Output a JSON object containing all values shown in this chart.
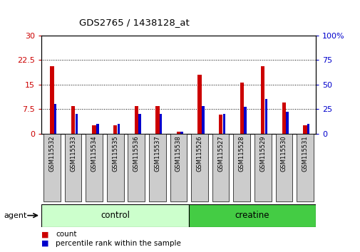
{
  "title": "GDS2765 / 1438128_at",
  "samples": [
    "GSM115532",
    "GSM115533",
    "GSM115534",
    "GSM115535",
    "GSM115536",
    "GSM115537",
    "GSM115538",
    "GSM115526",
    "GSM115527",
    "GSM115528",
    "GSM115529",
    "GSM115530",
    "GSM115531"
  ],
  "count_values": [
    20.5,
    8.5,
    2.5,
    2.5,
    8.5,
    8.5,
    0.5,
    18.0,
    5.8,
    15.5,
    20.5,
    9.5,
    2.5
  ],
  "percentile_values": [
    30,
    20,
    10,
    10,
    20,
    20,
    2,
    28,
    20,
    27,
    35,
    22,
    10
  ],
  "count_color": "#cc0000",
  "percentile_color": "#0000cc",
  "plot_bg": "#ffffff",
  "label_box_color": "#cccccc",
  "control_color": "#ccffcc",
  "creatine_color": "#44cc44",
  "y_left_ticks": [
    0,
    7.5,
    15,
    22.5,
    30
  ],
  "y_left_labels": [
    "0",
    "7.5",
    "15",
    "22.5",
    "30"
  ],
  "y_right_ticks": [
    0,
    25,
    50,
    75,
    100
  ],
  "y_right_labels": [
    "0",
    "25",
    "50",
    "75",
    "100%"
  ],
  "ylim_left": [
    0,
    30
  ],
  "ylim_right": [
    0,
    100
  ],
  "legend_count": "count",
  "legend_pct": "percentile rank within the sample",
  "agent_label": "agent",
  "n_control": 7,
  "n_creatine": 6
}
